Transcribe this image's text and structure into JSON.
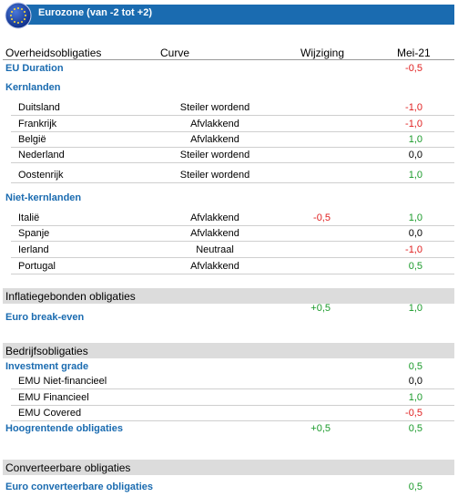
{
  "header": {
    "title": "Eurozone (van -2 tot +2)",
    "band_color": "#1a6bb0",
    "logo": "eu-flag-globe-icon"
  },
  "columns": {
    "c1": "Overheidsobligaties",
    "c2": "Curve",
    "c3": "Wijziging",
    "c4": "Mei-21"
  },
  "eu_duration": {
    "label": "EU Duration",
    "value": "-0,5"
  },
  "kern": {
    "label": "Kernlanden",
    "rows": [
      {
        "country": "Duitsland",
        "curve": "Steiler wordend",
        "value": "-1,0"
      },
      {
        "country": "Frankrijk",
        "curve": "Afvlakkend",
        "value": "-1,0"
      },
      {
        "country": "België",
        "curve": "Afvlakkend",
        "value": "1,0"
      },
      {
        "country": "Nederland",
        "curve": "Steiler wordend",
        "value": "0,0"
      },
      {
        "country": "Oostenrijk",
        "curve": "Steiler wordend",
        "value": "1,0"
      }
    ]
  },
  "nietkern": {
    "label": "Niet-kernlanden",
    "rows": [
      {
        "country": "Italië",
        "curve": "Afvlakkend",
        "change": "-0,5",
        "value": "1,0"
      },
      {
        "country": "Spanje",
        "curve": "Afvlakkend",
        "change": "",
        "value": "0,0"
      },
      {
        "country": "Ierland",
        "curve": "Neutraal",
        "change": "",
        "value": "-1,0"
      },
      {
        "country": "Portugal",
        "curve": "Afvlakkend",
        "change": "",
        "value": "0,5"
      }
    ]
  },
  "inflatie": {
    "title": "Inflatiegebonden obligaties",
    "label": "Euro break-even",
    "change": "+0,5",
    "value": "1,0"
  },
  "bedrijf": {
    "title": "Bedrijfsobligaties",
    "ig_label": "Investment grade",
    "ig_value": "0,5",
    "rows": [
      {
        "name": "EMU Niet-financieel",
        "value": "0,0"
      },
      {
        "name": "EMU Financieel",
        "value": "1,0"
      },
      {
        "name": "EMU Covered",
        "value": "-0,5"
      }
    ],
    "hy_label": "Hoogrentende obligaties",
    "hy_change": "+0,5",
    "hy_value": "0,5"
  },
  "conv": {
    "title": "Converteerbare obligaties",
    "label": "Euro converteerbare obligaties",
    "value": "0,5"
  },
  "colors": {
    "positive": "#1a9a2a",
    "negative": "#e02020",
    "neutral": "#000000",
    "accent": "#1a6bb0"
  }
}
